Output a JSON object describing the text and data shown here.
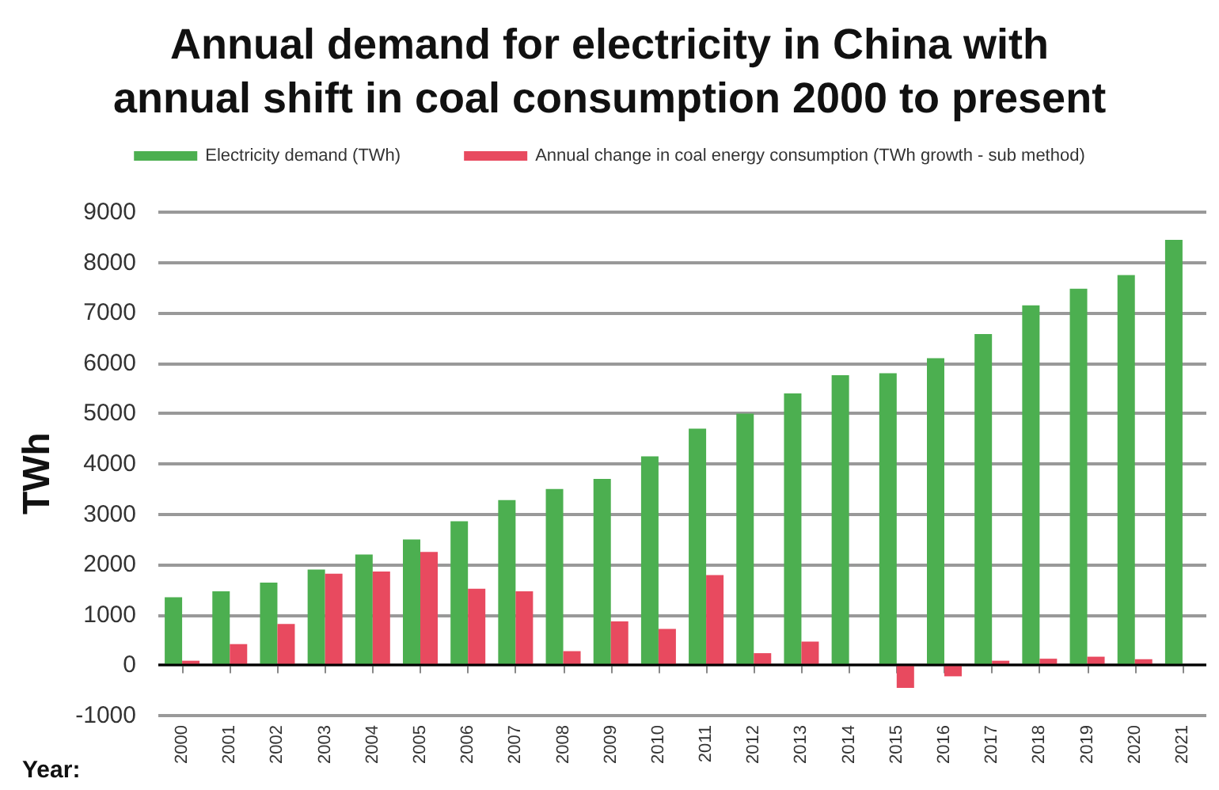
{
  "chart_data": {
    "type": "bar",
    "title": "Annual demand for electricity in China with\nannual shift in coal consumption 2000 to present",
    "xlabel": "Year:",
    "ylabel": "TWh",
    "categories": [
      "2000",
      "2001",
      "2002",
      "2003",
      "2004",
      "2005",
      "2006",
      "2007",
      "2008",
      "2009",
      "2010",
      "2011",
      "2012",
      "2013",
      "2014",
      "2015",
      "2016",
      "2017",
      "2018",
      "2019",
      "2020",
      "2021"
    ],
    "series": [
      {
        "name": "Electricity demand (TWh)",
        "color": "#4caf50",
        "values": [
          1350,
          1470,
          1640,
          1900,
          2200,
          2500,
          2860,
          3280,
          3500,
          3700,
          4150,
          4700,
          5000,
          5400,
          5760,
          5800,
          6100,
          6580,
          7150,
          7480,
          7750,
          8450
        ]
      },
      {
        "name": "Annual change in coal energy consumption (TWh growth - sub method)",
        "color": "#e84a5f",
        "values": [
          90,
          420,
          820,
          1820,
          1860,
          2250,
          1520,
          1470,
          280,
          870,
          720,
          1790,
          240,
          470,
          null,
          -450,
          -220,
          90,
          130,
          170,
          120,
          null
        ]
      }
    ],
    "ylim": [
      -1000,
      9000
    ],
    "yticks": [
      -1000,
      0,
      1000,
      2000,
      3000,
      4000,
      5000,
      6000,
      7000,
      8000,
      9000
    ],
    "ref_lines": [
      {
        "axis": "y",
        "value": 0,
        "color": "#000000"
      }
    ],
    "grid": "y",
    "legend": "top"
  }
}
